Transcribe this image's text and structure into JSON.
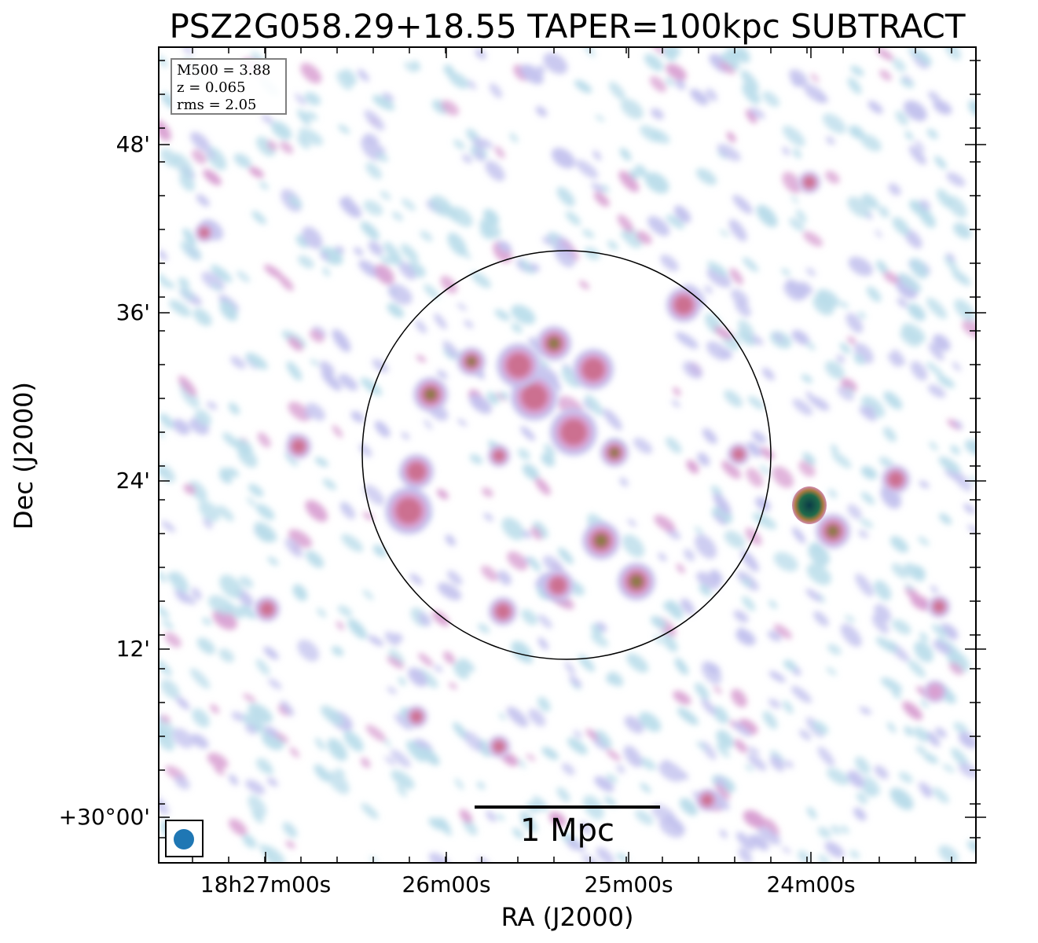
{
  "title": "PSZ2G058.29+18.55 TAPER=100kpc SUBTRACT",
  "info": {
    "m500": "M500 = 3.88",
    "z": "z = 0.065",
    "rms": "rms = 2.05"
  },
  "scalebar_label": "1 Mpc",
  "axes": {
    "xlabel": "RA (J2000)",
    "ylabel": "Dec (J2000)",
    "xticks": [
      "18h27m00s",
      "26m00s",
      "25m00s",
      "24m00s"
    ],
    "yticks": [
      "48'",
      "36'",
      "24'",
      "12'",
      "+30°00'"
    ]
  },
  "colors": {
    "faint": "#b9dcea",
    "low": "#c3c2ee",
    "mid": "#d9a0d2",
    "high": "#cc7090",
    "peak": "#8a7a40",
    "point_source": "#0f4a4a",
    "beam": "#1f77b4",
    "infobox_border": "#808080"
  },
  "blobs": [
    {
      "x": 548,
      "y": 502,
      "r": 22,
      "l": 3
    },
    {
      "x": 600,
      "y": 460,
      "r": 18,
      "l": 4
    },
    {
      "x": 705,
      "y": 437,
      "r": 22,
      "l": 3
    },
    {
      "x": 782,
      "y": 576,
      "r": 18,
      "l": 4
    },
    {
      "x": 765,
      "y": 688,
      "r": 24,
      "l": 3
    },
    {
      "x": 810,
      "y": 740,
      "r": 24,
      "l": 3
    },
    {
      "x": 680,
      "y": 505,
      "r": 30,
      "l": 2
    },
    {
      "x": 730,
      "y": 550,
      "r": 30,
      "l": 2
    },
    {
      "x": 660,
      "y": 465,
      "r": 28,
      "l": 2
    },
    {
      "x": 755,
      "y": 470,
      "r": 26,
      "l": 2
    },
    {
      "x": 870,
      "y": 388,
      "r": 22,
      "l": 2
    },
    {
      "x": 520,
      "y": 650,
      "r": 30,
      "l": 2
    },
    {
      "x": 530,
      "y": 600,
      "r": 22,
      "l": 2
    },
    {
      "x": 710,
      "y": 745,
      "r": 20,
      "l": 2
    },
    {
      "x": 640,
      "y": 778,
      "r": 18,
      "l": 2
    },
    {
      "x": 940,
      "y": 578,
      "r": 14,
      "l": 2
    },
    {
      "x": 635,
      "y": 580,
      "r": 14,
      "l": 2
    },
    {
      "x": 1060,
      "y": 676,
      "r": 22,
      "l": 3
    },
    {
      "x": 1140,
      "y": 610,
      "r": 18,
      "l": 2
    },
    {
      "x": 1195,
      "y": 772,
      "r": 14,
      "l": 2
    },
    {
      "x": 380,
      "y": 568,
      "r": 16,
      "l": 2
    },
    {
      "x": 340,
      "y": 775,
      "r": 16,
      "l": 2
    },
    {
      "x": 530,
      "y": 912,
      "r": 14,
      "l": 2
    },
    {
      "x": 635,
      "y": 950,
      "r": 14,
      "l": 2
    },
    {
      "x": 900,
      "y": 1018,
      "r": 14,
      "l": 2
    },
    {
      "x": 1030,
      "y": 232,
      "r": 14,
      "l": 2
    },
    {
      "x": 260,
      "y": 296,
      "r": 12,
      "l": 2
    },
    {
      "x": 1190,
      "y": 880,
      "r": 14,
      "l": 1
    }
  ],
  "point_source": {
    "x": 1030,
    "y": 643
  }
}
